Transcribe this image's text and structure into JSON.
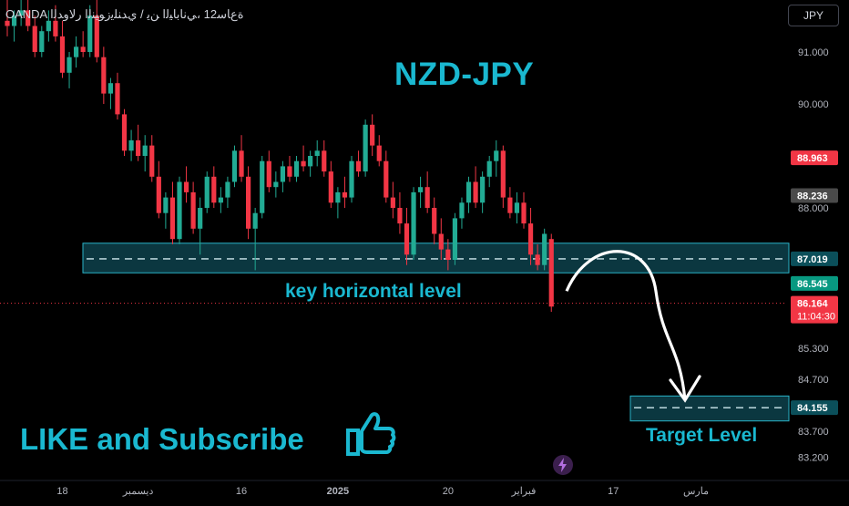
{
  "header": {
    "title": "ﺓﻉﺎﺳ12 ،ﻲﻧﺎﺑﺎﻴﻟﺍ ﻦﻳ / ﻱﺪﻨﻠﻳﺯﻮﻴﻨﻟﺍ ﺭﻻﻭﺪﻟﺍ",
    "broker": "OANDA",
    "currency_button": "JPY"
  },
  "annotations": {
    "pair_title": "NZD-JPY",
    "key_level_label": "key horizontal level",
    "target_level_label": "Target Level",
    "like_label": "LIKE and Subscribe"
  },
  "icons": {
    "thumb": "thumbs-up-icon",
    "replay": "lightning-replay-icon"
  },
  "colors": {
    "background": "#000000",
    "up": "#22ab94",
    "down": "#f23645",
    "accent": "#1ab8d0",
    "zone_fill": "#0f4a55",
    "zone_border": "#2ab3c8"
  },
  "chart_data": {
    "type": "candlestick",
    "y_axis": {
      "range": [
        82.9,
        92.0
      ],
      "tick_labels": [
        "91.000",
        "90.000",
        "88.000",
        "85.300",
        "84.700",
        "83.700",
        "83.200"
      ],
      "tick_values": [
        91.0,
        90.0,
        88.0,
        85.3,
        84.7,
        83.7,
        83.2
      ]
    },
    "price_tags": [
      {
        "label": "88.963",
        "value": 88.963,
        "color": "#f23645"
      },
      {
        "label": "88.236",
        "value": 88.236,
        "color": "#4a4a4a"
      },
      {
        "label": "87.019",
        "value": 87.019,
        "color": "#0b4f5a"
      },
      {
        "label": "86.545",
        "value": 86.545,
        "color": "#089981"
      },
      {
        "label": "86.164",
        "value": 86.164,
        "color": "#f23645",
        "countdown": "11:04:30"
      },
      {
        "label": "84.155",
        "value": 84.155,
        "color": "#0b4f5a"
      }
    ],
    "x_axis": {
      "tick_labels": [
        "18",
        "ديسمبر",
        "16",
        "2025",
        "20",
        "فبراير",
        "17",
        "مارس"
      ],
      "tick_indices": [
        8,
        19,
        34,
        48,
        64,
        75,
        88,
        100
      ]
    },
    "current_price": 86.164,
    "zones": [
      {
        "name": "key horizontal level",
        "top": 87.32,
        "bottom": 86.75,
        "mid": 87.019
      },
      {
        "name": "Target Level",
        "top": 84.38,
        "bottom": 83.9,
        "mid": 84.155
      }
    ],
    "projection": {
      "from": 86.4,
      "peak": 87.1,
      "to": 84.3
    },
    "candles": [
      {
        "o": 91.6,
        "h": 92.0,
        "l": 91.3,
        "c": 91.5
      },
      {
        "o": 91.5,
        "h": 91.8,
        "l": 91.2,
        "c": 91.7
      },
      {
        "o": 91.7,
        "h": 92.0,
        "l": 91.5,
        "c": 91.8
      },
      {
        "o": 91.8,
        "h": 92.0,
        "l": 91.4,
        "c": 91.5
      },
      {
        "o": 91.5,
        "h": 91.7,
        "l": 90.9,
        "c": 91.0
      },
      {
        "o": 91.0,
        "h": 91.5,
        "l": 90.9,
        "c": 91.4
      },
      {
        "o": 91.4,
        "h": 91.8,
        "l": 91.2,
        "c": 91.6
      },
      {
        "o": 91.6,
        "h": 91.9,
        "l": 91.2,
        "c": 91.3
      },
      {
        "o": 91.3,
        "h": 91.6,
        "l": 90.5,
        "c": 90.6
      },
      {
        "o": 90.6,
        "h": 91.0,
        "l": 90.3,
        "c": 90.9
      },
      {
        "o": 90.9,
        "h": 91.3,
        "l": 90.7,
        "c": 91.1
      },
      {
        "o": 91.1,
        "h": 91.4,
        "l": 90.9,
        "c": 91.0
      },
      {
        "o": 91.0,
        "h": 91.9,
        "l": 90.9,
        "c": 91.7
      },
      {
        "o": 91.7,
        "h": 92.0,
        "l": 90.8,
        "c": 90.9
      },
      {
        "o": 90.9,
        "h": 91.1,
        "l": 90.0,
        "c": 90.2
      },
      {
        "o": 90.2,
        "h": 90.5,
        "l": 89.9,
        "c": 90.4
      },
      {
        "o": 90.4,
        "h": 90.6,
        "l": 89.7,
        "c": 89.8
      },
      {
        "o": 89.8,
        "h": 89.9,
        "l": 89.0,
        "c": 89.1
      },
      {
        "o": 89.1,
        "h": 89.5,
        "l": 88.9,
        "c": 89.3
      },
      {
        "o": 89.3,
        "h": 89.6,
        "l": 88.9,
        "c": 89.0
      },
      {
        "o": 89.0,
        "h": 89.4,
        "l": 88.7,
        "c": 89.2
      },
      {
        "o": 89.2,
        "h": 89.4,
        "l": 88.5,
        "c": 88.6
      },
      {
        "o": 88.6,
        "h": 88.9,
        "l": 87.8,
        "c": 87.9
      },
      {
        "o": 87.9,
        "h": 88.3,
        "l": 87.6,
        "c": 88.2
      },
      {
        "o": 88.2,
        "h": 88.5,
        "l": 87.3,
        "c": 87.4
      },
      {
        "o": 87.4,
        "h": 88.6,
        "l": 87.3,
        "c": 88.5
      },
      {
        "o": 88.5,
        "h": 88.8,
        "l": 88.1,
        "c": 88.3
      },
      {
        "o": 88.3,
        "h": 88.5,
        "l": 87.5,
        "c": 87.6
      },
      {
        "o": 87.6,
        "h": 88.2,
        "l": 87.1,
        "c": 88.0
      },
      {
        "o": 88.0,
        "h": 88.7,
        "l": 87.9,
        "c": 88.6
      },
      {
        "o": 88.6,
        "h": 88.8,
        "l": 88.0,
        "c": 88.1
      },
      {
        "o": 88.1,
        "h": 88.4,
        "l": 87.9,
        "c": 88.2
      },
      {
        "o": 88.2,
        "h": 88.6,
        "l": 88.0,
        "c": 88.5
      },
      {
        "o": 88.5,
        "h": 89.2,
        "l": 88.4,
        "c": 89.1
      },
      {
        "o": 89.1,
        "h": 89.4,
        "l": 88.5,
        "c": 88.6
      },
      {
        "o": 88.6,
        "h": 88.8,
        "l": 87.4,
        "c": 87.6
      },
      {
        "o": 87.6,
        "h": 88.0,
        "l": 86.8,
        "c": 87.9
      },
      {
        "o": 87.9,
        "h": 89.0,
        "l": 87.8,
        "c": 88.9
      },
      {
        "o": 88.9,
        "h": 89.1,
        "l": 88.3,
        "c": 88.4
      },
      {
        "o": 88.4,
        "h": 88.7,
        "l": 88.2,
        "c": 88.5
      },
      {
        "o": 88.5,
        "h": 88.9,
        "l": 88.3,
        "c": 88.8
      },
      {
        "o": 88.8,
        "h": 89.0,
        "l": 88.5,
        "c": 88.6
      },
      {
        "o": 88.6,
        "h": 89.0,
        "l": 88.5,
        "c": 88.9
      },
      {
        "o": 88.9,
        "h": 89.2,
        "l": 88.7,
        "c": 88.8
      },
      {
        "o": 88.8,
        "h": 89.1,
        "l": 88.6,
        "c": 89.0
      },
      {
        "o": 89.0,
        "h": 89.3,
        "l": 88.8,
        "c": 89.1
      },
      {
        "o": 89.1,
        "h": 89.3,
        "l": 88.6,
        "c": 88.7
      },
      {
        "o": 88.7,
        "h": 88.9,
        "l": 88.0,
        "c": 88.1
      },
      {
        "o": 88.1,
        "h": 88.4,
        "l": 87.8,
        "c": 88.3
      },
      {
        "o": 88.3,
        "h": 88.6,
        "l": 88.0,
        "c": 88.2
      },
      {
        "o": 88.2,
        "h": 89.0,
        "l": 88.1,
        "c": 88.9
      },
      {
        "o": 88.9,
        "h": 89.1,
        "l": 88.6,
        "c": 88.7
      },
      {
        "o": 88.7,
        "h": 89.7,
        "l": 88.6,
        "c": 89.6
      },
      {
        "o": 89.6,
        "h": 89.8,
        "l": 89.0,
        "c": 89.2
      },
      {
        "o": 89.2,
        "h": 89.4,
        "l": 88.8,
        "c": 88.9
      },
      {
        "o": 88.9,
        "h": 89.1,
        "l": 88.1,
        "c": 88.2
      },
      {
        "o": 88.2,
        "h": 88.5,
        "l": 87.8,
        "c": 88.0
      },
      {
        "o": 88.0,
        "h": 88.3,
        "l": 87.5,
        "c": 87.7
      },
      {
        "o": 87.7,
        "h": 88.0,
        "l": 86.9,
        "c": 87.1
      },
      {
        "o": 87.1,
        "h": 88.4,
        "l": 87.0,
        "c": 88.3
      },
      {
        "o": 88.3,
        "h": 88.6,
        "l": 88.0,
        "c": 88.4
      },
      {
        "o": 88.4,
        "h": 88.7,
        "l": 87.9,
        "c": 88.0
      },
      {
        "o": 88.0,
        "h": 88.2,
        "l": 87.3,
        "c": 87.5
      },
      {
        "o": 87.5,
        "h": 87.8,
        "l": 87.0,
        "c": 87.2
      },
      {
        "o": 87.2,
        "h": 87.4,
        "l": 86.8,
        "c": 87.0
      },
      {
        "o": 87.0,
        "h": 87.9,
        "l": 86.9,
        "c": 87.8
      },
      {
        "o": 87.8,
        "h": 88.2,
        "l": 87.6,
        "c": 88.1
      },
      {
        "o": 88.1,
        "h": 88.6,
        "l": 87.9,
        "c": 88.5
      },
      {
        "o": 88.5,
        "h": 88.8,
        "l": 88.0,
        "c": 88.1
      },
      {
        "o": 88.1,
        "h": 88.7,
        "l": 87.9,
        "c": 88.6
      },
      {
        "o": 88.6,
        "h": 89.0,
        "l": 88.4,
        "c": 88.9
      },
      {
        "o": 88.9,
        "h": 89.3,
        "l": 88.6,
        "c": 89.1
      },
      {
        "o": 89.1,
        "h": 89.2,
        "l": 88.0,
        "c": 88.2
      },
      {
        "o": 88.2,
        "h": 88.4,
        "l": 87.8,
        "c": 87.9
      },
      {
        "o": 87.9,
        "h": 88.3,
        "l": 87.7,
        "c": 88.1
      },
      {
        "o": 88.1,
        "h": 88.3,
        "l": 87.6,
        "c": 87.7
      },
      {
        "o": 87.7,
        "h": 88.0,
        "l": 86.9,
        "c": 87.1
      },
      {
        "o": 87.1,
        "h": 87.3,
        "l": 86.8,
        "c": 86.9
      },
      {
        "o": 86.9,
        "h": 87.6,
        "l": 86.8,
        "c": 87.5
      },
      {
        "o": 87.4,
        "h": 87.5,
        "l": 86.0,
        "c": 86.1
      }
    ]
  }
}
